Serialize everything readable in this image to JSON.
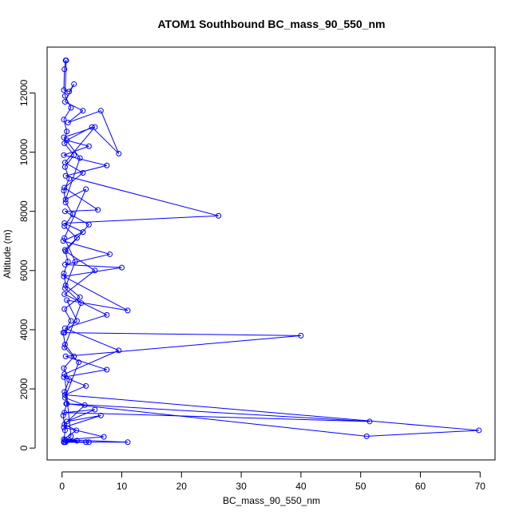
{
  "chart_data": {
    "type": "line",
    "title": "ATOM1 Southbound BC_mass_90_550_nm",
    "xlabel": "BC_mass_90_550_nm",
    "ylabel": "Altitude (m)",
    "xlim": [
      -2.5,
      72.5
    ],
    "ylim": [
      -400,
      13550
    ],
    "x_ticks": [
      0,
      10,
      20,
      30,
      40,
      50,
      60,
      70
    ],
    "y_ticks": [
      0,
      2000,
      4000,
      6000,
      8000,
      10000,
      12000
    ],
    "marker": "open-circle",
    "grid": false,
    "series_color": "#0000ff",
    "series": [
      {
        "points": [
          [
            0.3,
            200
          ],
          [
            0.5,
            600
          ],
          [
            0.2,
            1100
          ],
          [
            0.8,
            1500
          ],
          [
            0.4,
            1900
          ],
          [
            1.2,
            2300
          ],
          [
            0.3,
            2700
          ],
          [
            2.0,
            3100
          ],
          [
            0.5,
            3500
          ],
          [
            0.2,
            3900
          ],
          [
            1.5,
            4300
          ],
          [
            0.4,
            4700
          ],
          [
            3.0,
            5100
          ],
          [
            0.6,
            5500
          ],
          [
            0.3,
            5900
          ],
          [
            1.0,
            6300
          ],
          [
            0.5,
            6700
          ],
          [
            2.5,
            7100
          ],
          [
            0.4,
            7500
          ],
          [
            1.8,
            7900
          ],
          [
            0.6,
            8300
          ],
          [
            0.3,
            8700
          ],
          [
            1.2,
            9100
          ],
          [
            0.5,
            9500
          ],
          [
            2.0,
            9900
          ],
          [
            0.4,
            10300
          ],
          [
            0.8,
            10700
          ],
          [
            0.3,
            11100
          ],
          [
            1.5,
            11500
          ],
          [
            0.5,
            11900
          ],
          [
            0.7,
            13100
          ],
          [
            0.6,
            13100
          ],
          [
            0.4,
            12800
          ],
          [
            0.3,
            12100
          ],
          [
            1.2,
            12050
          ],
          [
            2.0,
            12300
          ],
          [
            0.5,
            11700
          ],
          [
            3.5,
            11400
          ],
          [
            1.0,
            11000
          ],
          [
            6.5,
            11400
          ],
          [
            9.5,
            9950
          ],
          [
            5.0,
            10850
          ],
          [
            0.8,
            10400
          ],
          [
            4.5,
            10200
          ],
          [
            0.3,
            9900
          ],
          [
            7.5,
            9550
          ],
          [
            0.6,
            9200
          ],
          [
            26.2,
            7850
          ],
          [
            0.4,
            7600
          ],
          [
            3.5,
            7300
          ],
          [
            0.2,
            7000
          ],
          [
            8.0,
            6550
          ],
          [
            0.5,
            6200
          ],
          [
            10.0,
            6100
          ],
          [
            0.3,
            5800
          ],
          [
            11.0,
            4650
          ],
          [
            0.8,
            5000
          ],
          [
            2.5,
            4300
          ],
          [
            0.4,
            3900
          ],
          [
            40.0,
            3800
          ],
          [
            0.6,
            3100
          ],
          [
            7.5,
            2650
          ],
          [
            0.3,
            2400
          ],
          [
            4.0,
            2100
          ],
          [
            0.5,
            1800
          ],
          [
            69.8,
            600
          ],
          [
            51.0,
            400
          ],
          [
            0.7,
            1500
          ],
          [
            51.5,
            900
          ],
          [
            0.4,
            1200
          ],
          [
            5.5,
            1300
          ],
          [
            0.8,
            900
          ],
          [
            6.5,
            1100
          ],
          [
            0.3,
            700
          ],
          [
            7.0,
            380
          ],
          [
            0.5,
            280
          ],
          [
            11.0,
            200
          ],
          [
            0.6,
            200
          ],
          [
            4.5,
            200
          ],
          [
            0.4,
            200
          ],
          [
            4.0,
            200
          ],
          [
            0.7,
            250
          ],
          [
            2.5,
            250
          ],
          [
            0.3,
            200
          ],
          [
            1.5,
            400
          ],
          [
            0.4,
            2500
          ],
          [
            9.5,
            3300
          ],
          [
            0.5,
            4050
          ],
          [
            7.5,
            4500
          ],
          [
            0.4,
            5200
          ],
          [
            5.5,
            6000
          ],
          [
            0.6,
            6650
          ],
          [
            4.5,
            7550
          ],
          [
            0.5,
            8000
          ],
          [
            6.0,
            8050
          ],
          [
            0.4,
            8800
          ],
          [
            3.5,
            9300
          ],
          [
            0.5,
            9650
          ],
          [
            5.5,
            10850
          ],
          [
            0.3,
            10500
          ],
          [
            3.0,
            9800
          ],
          [
            0.6,
            8400
          ],
          [
            4.0,
            8750
          ],
          [
            0.4,
            7100
          ],
          [
            2.2,
            6300
          ],
          [
            0.5,
            5400
          ],
          [
            3.2,
            4900
          ],
          [
            0.4,
            3400
          ],
          [
            2.8,
            2900
          ],
          [
            0.5,
            1700
          ],
          [
            3.8,
            1450
          ],
          [
            0.4,
            800
          ],
          [
            2.4,
            600
          ],
          [
            0.3,
            300
          ]
        ]
      }
    ]
  }
}
